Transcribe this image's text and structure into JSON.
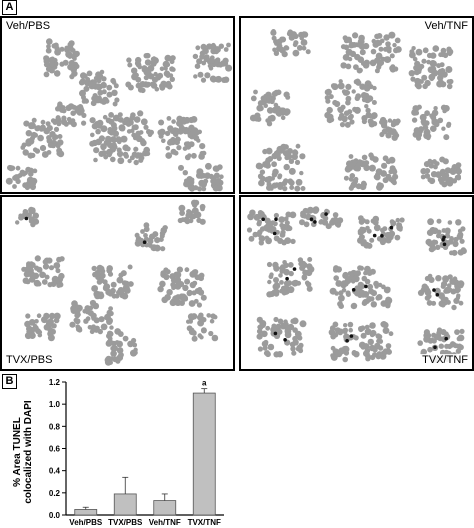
{
  "figure": {
    "panel_a_label": "A",
    "panel_b_label": "B",
    "micrographs": [
      {
        "label": "Veh/PBS",
        "tunel_spots": 0
      },
      {
        "label": "Veh/TNF",
        "tunel_spots": 0
      },
      {
        "label": "TVX/PBS",
        "tunel_spots": 2
      },
      {
        "label": "TVX/TNF",
        "tunel_spots": 24
      }
    ],
    "colors": {
      "cell": "#9b9b9b",
      "tunel": "#111111",
      "bar": "#c0c0c0"
    }
  },
  "chart_data": {
    "type": "bar",
    "categories": [
      "Veh/PBS",
      "TVX/PBS",
      "Veh/TNF",
      "TVX/TNF"
    ],
    "values": [
      0.05,
      0.19,
      0.13,
      1.1
    ],
    "errors": [
      0.02,
      0.15,
      0.06,
      0.04
    ],
    "annotations": [
      "",
      "",
      "",
      "a"
    ],
    "ylabel_line1": "% Area TUNEL",
    "ylabel_line2": "colocalized with DAPI",
    "ylim": [
      0,
      1.2
    ],
    "yticks": [
      "0.0",
      "0.2",
      "0.4",
      "0.6",
      "0.8",
      "1.0",
      "1.2"
    ],
    "grid": false
  }
}
